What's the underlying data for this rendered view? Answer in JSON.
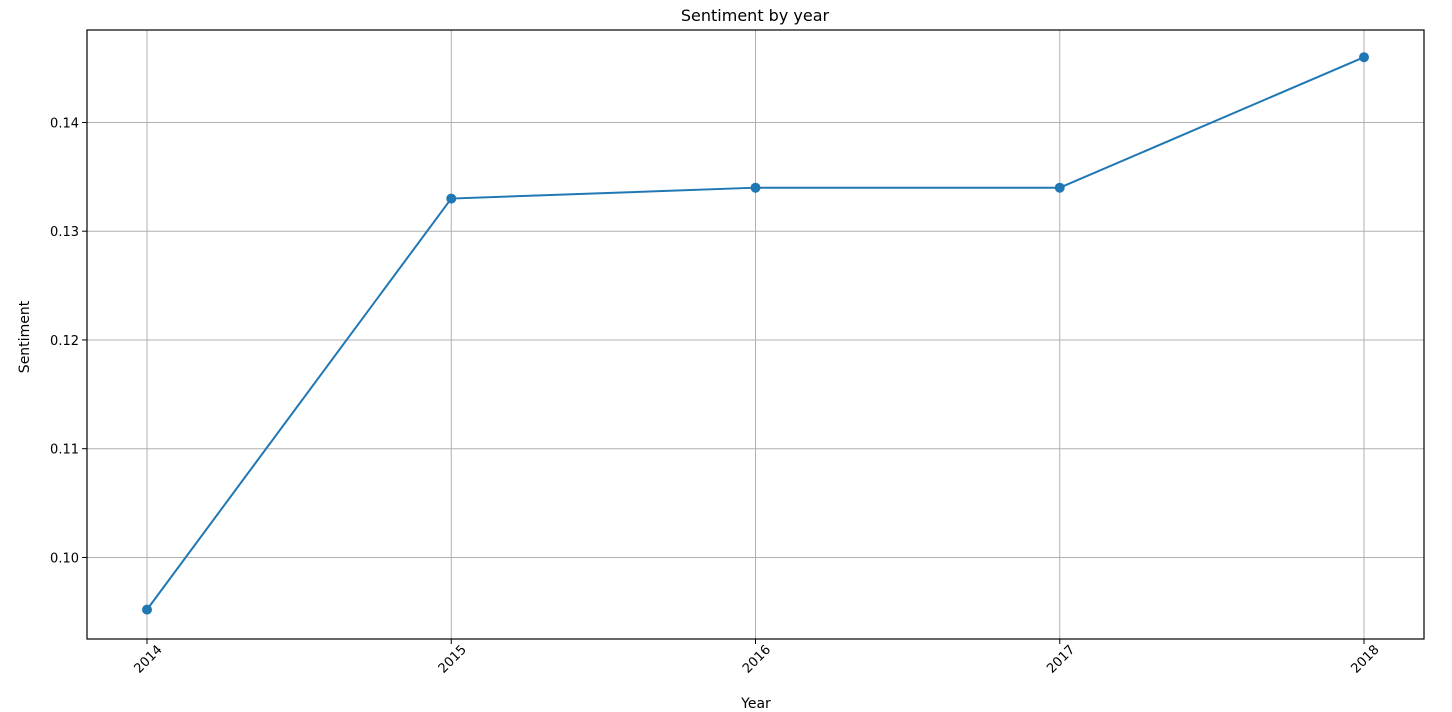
{
  "chart_data": {
    "type": "line",
    "title": "Sentiment by year",
    "xlabel": "Year",
    "ylabel": "Sentiment",
    "x": [
      "2014",
      "2015",
      "2016",
      "2017",
      "2018"
    ],
    "series": [
      {
        "values": [
          0.0952,
          0.133,
          0.134,
          0.134,
          0.146
        ],
        "color": "#1f77b4",
        "marker": "circle"
      }
    ],
    "yticks": [
      "0.10",
      "0.11",
      "0.12",
      "0.13",
      "0.14"
    ],
    "ytick_values": [
      0.1,
      0.11,
      0.12,
      0.13,
      0.14
    ],
    "ylim": [
      0.0925,
      0.1485
    ],
    "x_tick_rotation": 45,
    "grid": true,
    "legend": "none"
  }
}
